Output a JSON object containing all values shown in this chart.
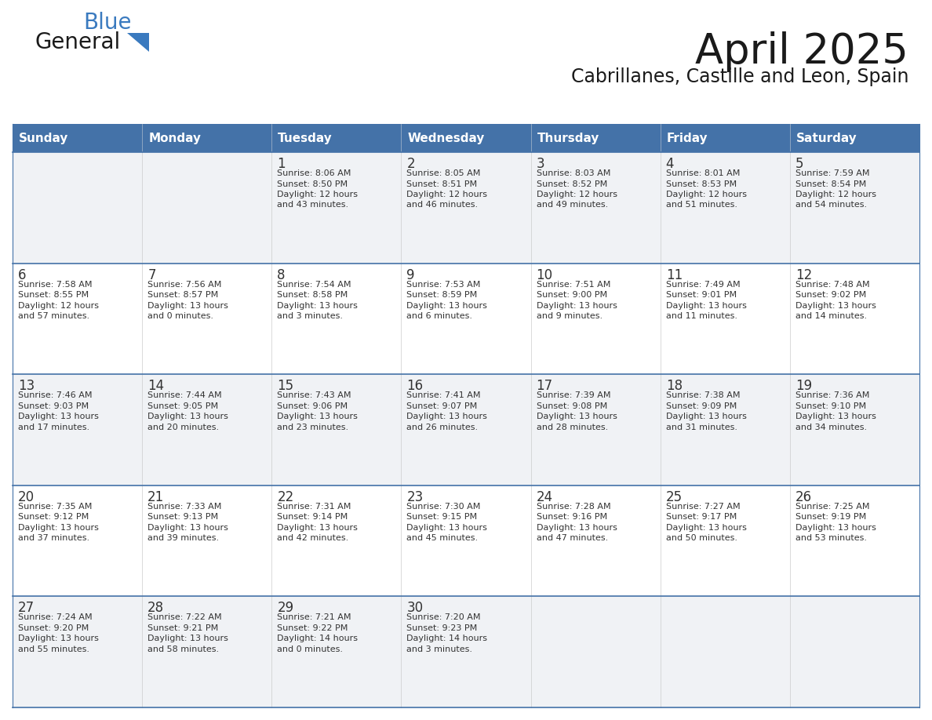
{
  "title": "April 2025",
  "subtitle": "Cabrillanes, Castille and Leon, Spain",
  "header_bg": "#4472a8",
  "header_text_color": "#ffffff",
  "row_bg_odd": "#f0f2f5",
  "row_bg_even": "#ffffff",
  "divider_color": "#4472a8",
  "text_color": "#333333",
  "days_of_week": [
    "Sunday",
    "Monday",
    "Tuesday",
    "Wednesday",
    "Thursday",
    "Friday",
    "Saturday"
  ],
  "calendar_data": [
    [
      {
        "day": "",
        "info": ""
      },
      {
        "day": "",
        "info": ""
      },
      {
        "day": "1",
        "info": "Sunrise: 8:06 AM\nSunset: 8:50 PM\nDaylight: 12 hours\nand 43 minutes."
      },
      {
        "day": "2",
        "info": "Sunrise: 8:05 AM\nSunset: 8:51 PM\nDaylight: 12 hours\nand 46 minutes."
      },
      {
        "day": "3",
        "info": "Sunrise: 8:03 AM\nSunset: 8:52 PM\nDaylight: 12 hours\nand 49 minutes."
      },
      {
        "day": "4",
        "info": "Sunrise: 8:01 AM\nSunset: 8:53 PM\nDaylight: 12 hours\nand 51 minutes."
      },
      {
        "day": "5",
        "info": "Sunrise: 7:59 AM\nSunset: 8:54 PM\nDaylight: 12 hours\nand 54 minutes."
      }
    ],
    [
      {
        "day": "6",
        "info": "Sunrise: 7:58 AM\nSunset: 8:55 PM\nDaylight: 12 hours\nand 57 minutes."
      },
      {
        "day": "7",
        "info": "Sunrise: 7:56 AM\nSunset: 8:57 PM\nDaylight: 13 hours\nand 0 minutes."
      },
      {
        "day": "8",
        "info": "Sunrise: 7:54 AM\nSunset: 8:58 PM\nDaylight: 13 hours\nand 3 minutes."
      },
      {
        "day": "9",
        "info": "Sunrise: 7:53 AM\nSunset: 8:59 PM\nDaylight: 13 hours\nand 6 minutes."
      },
      {
        "day": "10",
        "info": "Sunrise: 7:51 AM\nSunset: 9:00 PM\nDaylight: 13 hours\nand 9 minutes."
      },
      {
        "day": "11",
        "info": "Sunrise: 7:49 AM\nSunset: 9:01 PM\nDaylight: 13 hours\nand 11 minutes."
      },
      {
        "day": "12",
        "info": "Sunrise: 7:48 AM\nSunset: 9:02 PM\nDaylight: 13 hours\nand 14 minutes."
      }
    ],
    [
      {
        "day": "13",
        "info": "Sunrise: 7:46 AM\nSunset: 9:03 PM\nDaylight: 13 hours\nand 17 minutes."
      },
      {
        "day": "14",
        "info": "Sunrise: 7:44 AM\nSunset: 9:05 PM\nDaylight: 13 hours\nand 20 minutes."
      },
      {
        "day": "15",
        "info": "Sunrise: 7:43 AM\nSunset: 9:06 PM\nDaylight: 13 hours\nand 23 minutes."
      },
      {
        "day": "16",
        "info": "Sunrise: 7:41 AM\nSunset: 9:07 PM\nDaylight: 13 hours\nand 26 minutes."
      },
      {
        "day": "17",
        "info": "Sunrise: 7:39 AM\nSunset: 9:08 PM\nDaylight: 13 hours\nand 28 minutes."
      },
      {
        "day": "18",
        "info": "Sunrise: 7:38 AM\nSunset: 9:09 PM\nDaylight: 13 hours\nand 31 minutes."
      },
      {
        "day": "19",
        "info": "Sunrise: 7:36 AM\nSunset: 9:10 PM\nDaylight: 13 hours\nand 34 minutes."
      }
    ],
    [
      {
        "day": "20",
        "info": "Sunrise: 7:35 AM\nSunset: 9:12 PM\nDaylight: 13 hours\nand 37 minutes."
      },
      {
        "day": "21",
        "info": "Sunrise: 7:33 AM\nSunset: 9:13 PM\nDaylight: 13 hours\nand 39 minutes."
      },
      {
        "day": "22",
        "info": "Sunrise: 7:31 AM\nSunset: 9:14 PM\nDaylight: 13 hours\nand 42 minutes."
      },
      {
        "day": "23",
        "info": "Sunrise: 7:30 AM\nSunset: 9:15 PM\nDaylight: 13 hours\nand 45 minutes."
      },
      {
        "day": "24",
        "info": "Sunrise: 7:28 AM\nSunset: 9:16 PM\nDaylight: 13 hours\nand 47 minutes."
      },
      {
        "day": "25",
        "info": "Sunrise: 7:27 AM\nSunset: 9:17 PM\nDaylight: 13 hours\nand 50 minutes."
      },
      {
        "day": "26",
        "info": "Sunrise: 7:25 AM\nSunset: 9:19 PM\nDaylight: 13 hours\nand 53 minutes."
      }
    ],
    [
      {
        "day": "27",
        "info": "Sunrise: 7:24 AM\nSunset: 9:20 PM\nDaylight: 13 hours\nand 55 minutes."
      },
      {
        "day": "28",
        "info": "Sunrise: 7:22 AM\nSunset: 9:21 PM\nDaylight: 13 hours\nand 58 minutes."
      },
      {
        "day": "29",
        "info": "Sunrise: 7:21 AM\nSunset: 9:22 PM\nDaylight: 14 hours\nand 0 minutes."
      },
      {
        "day": "30",
        "info": "Sunrise: 7:20 AM\nSunset: 9:23 PM\nDaylight: 14 hours\nand 3 minutes."
      },
      {
        "day": "",
        "info": ""
      },
      {
        "day": "",
        "info": ""
      },
      {
        "day": "",
        "info": ""
      }
    ]
  ],
  "logo_general_color": "#1a1a1a",
  "logo_blue_color": "#3a7abf",
  "logo_triangle_color": "#3a7abf",
  "title_color": "#1a1a1a",
  "subtitle_color": "#1a1a1a"
}
